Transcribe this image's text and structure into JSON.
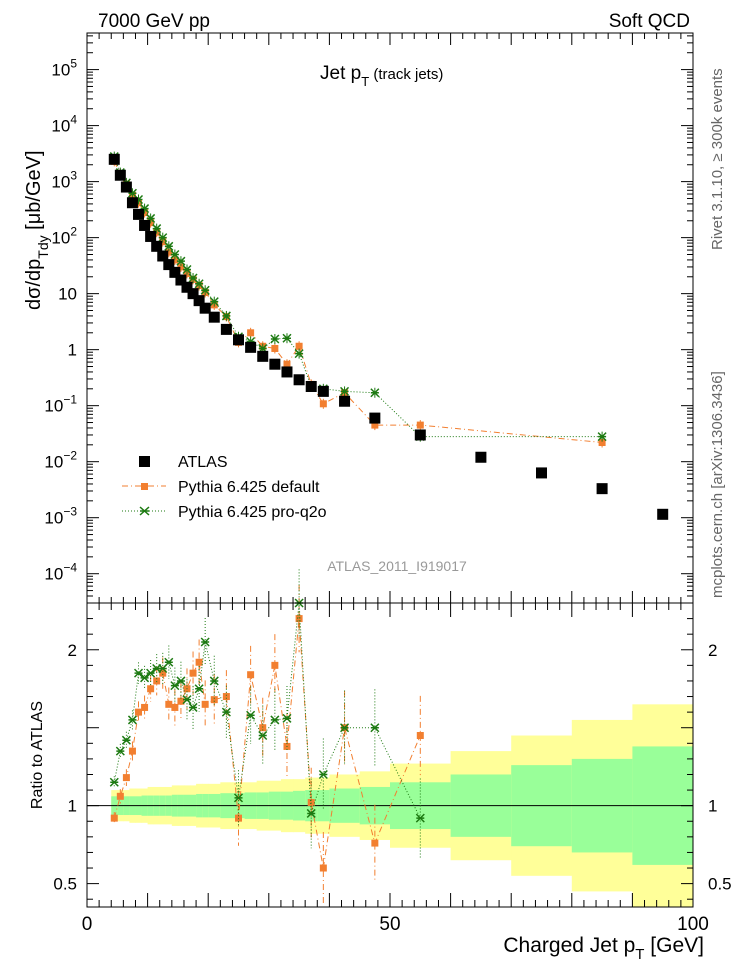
{
  "header": {
    "energy_label": "7000 GeV pp",
    "process_label": "Soft QCD",
    "plot_title": "Jet p",
    "plot_title_sub": "T",
    "plot_title_suffix": " (track jets)",
    "rivet_label": "Rivet 3.1.10, ≥ 300k events",
    "source_label": "mcplots.cern.ch [arXiv:1306.3436]",
    "watermark": "ATLAS_2011_I919017"
  },
  "legend": {
    "items": [
      {
        "label": "ATLAS",
        "color": "#000000",
        "marker": "square"
      },
      {
        "label": "Pythia 6.425 default",
        "color": "#f27f30",
        "marker": "square"
      },
      {
        "label": "Pythia 6.425 pro-q2o",
        "color": "#1d7a12",
        "marker": "star"
      }
    ]
  },
  "colors": {
    "data": "#000000",
    "pythia_default": "#f27f30",
    "pythia_proq2o": "#1d7a12",
    "band_outer": "#ffff99",
    "band_inner": "#99ff99"
  },
  "chart_data": [
    {
      "type": "scatter",
      "title": "Jet pT (track jets)",
      "ylabel_main": "dσ/dp",
      "ylabel_sub": "Tdy",
      "ylabel_unit": " [μb/GeV]",
      "yscale": "log",
      "ylim": [
        3e-05,
        450000
      ],
      "xlim": [
        0,
        100
      ],
      "yticks": [
        {
          "value": 100000,
          "label": "10",
          "exp": "5"
        },
        {
          "value": 10000,
          "label": "10",
          "exp": "4"
        },
        {
          "value": 1000,
          "label": "10",
          "exp": "3"
        },
        {
          "value": 100,
          "label": "10",
          "exp": "2"
        },
        {
          "value": 10,
          "label": "10",
          "exp": ""
        },
        {
          "value": 1,
          "label": "1",
          "exp": ""
        },
        {
          "value": 0.1,
          "label": "10",
          "exp": "−1"
        },
        {
          "value": 0.01,
          "label": "10",
          "exp": "−2"
        },
        {
          "value": 0.001,
          "label": "10",
          "exp": "−3"
        },
        {
          "value": 0.0001,
          "label": "10",
          "exp": "−4"
        }
      ],
      "series": [
        {
          "name": "ATLAS",
          "x": [
            4.5,
            5.5,
            6.5,
            7.5,
            8.5,
            9.5,
            10.5,
            11.5,
            12.5,
            13.5,
            14.5,
            15.5,
            16.5,
            17.5,
            18.5,
            19.5,
            21,
            23,
            25,
            27,
            29,
            31,
            33,
            35,
            37,
            39,
            42.5,
            47.5,
            55,
            65,
            75,
            85,
            95
          ],
          "y": [
            2500,
            1300,
            800,
            420,
            260,
            165,
            105,
            70,
            47,
            33,
            24,
            17.5,
            13,
            10,
            7.5,
            5.5,
            3.8,
            2.3,
            1.5,
            1.1,
            0.76,
            0.55,
            0.4,
            0.29,
            0.22,
            0.18,
            0.12,
            0.06,
            0.03,
            0.012,
            0.0063,
            0.0033,
            0.00115
          ]
        },
        {
          "name": "Pythia 6.425 default",
          "x": [
            4.5,
            5.5,
            6.5,
            7.5,
            8.5,
            9.5,
            10.5,
            11.5,
            12.5,
            13.5,
            14.5,
            15.5,
            16.5,
            17.5,
            18.5,
            19.5,
            21,
            23,
            25,
            27,
            29,
            31,
            33,
            35,
            37,
            39,
            42.5,
            47.5,
            55,
            85
          ],
          "y": [
            2300,
            1380,
            900,
            570,
            420,
            280,
            185,
            125,
            85,
            55,
            40,
            30,
            23,
            18,
            14,
            10.5,
            6.3,
            3.9,
            1.35,
            2.0,
            1.15,
            1.05,
            0.55,
            1.15,
            0.24,
            0.108,
            0.17,
            0.045,
            0.045,
            0.022
          ]
        },
        {
          "name": "Pythia 6.425 pro-q2o",
          "x": [
            4.5,
            5.5,
            6.5,
            7.5,
            8.5,
            9.5,
            10.5,
            11.5,
            12.5,
            13.5,
            14.5,
            15.5,
            16.5,
            17.5,
            18.5,
            19.5,
            21,
            23,
            25,
            27,
            29,
            31,
            33,
            35,
            37,
            39,
            42.5,
            47.5,
            55,
            85
          ],
          "y": [
            2800,
            1450,
            950,
            620,
            480,
            330,
            220,
            145,
            100,
            70,
            50,
            38,
            27,
            19,
            15,
            11.5,
            7.2,
            4.0,
            1.7,
            1.4,
            1.05,
            1.55,
            1.6,
            0.85,
            0.22,
            0.2,
            0.18,
            0.17,
            0.028,
            0.028
          ]
        }
      ]
    },
    {
      "type": "scatter",
      "ylabel": "Ratio to ATLAS",
      "xlabel_main": "Charged Jet p",
      "xlabel_sub": "T",
      "xlabel_unit": " [GeV]",
      "ylim": [
        0.35,
        2.3
      ],
      "xlim": [
        0,
        100
      ],
      "xticks": [
        {
          "value": 0,
          "label": "0"
        },
        {
          "value": 50,
          "label": "50"
        },
        {
          "value": 100,
          "label": "100"
        }
      ],
      "yticks": [
        {
          "value": 2,
          "label": "2"
        },
        {
          "value": 1,
          "label": "1"
        },
        {
          "value": 0.5,
          "label": "0.5"
        }
      ],
      "band_edges": [
        4,
        5,
        6,
        7,
        8,
        9,
        10,
        11,
        12,
        13,
        14,
        15,
        16,
        17,
        18,
        19,
        20,
        22,
        24,
        26,
        28,
        30,
        32,
        34,
        36,
        38,
        40,
        45,
        50,
        60,
        70,
        80,
        90,
        100
      ],
      "band_inner": [
        0.06,
        0.06,
        0.06,
        0.06,
        0.06,
        0.065,
        0.065,
        0.065,
        0.065,
        0.065,
        0.07,
        0.07,
        0.07,
        0.07,
        0.075,
        0.075,
        0.075,
        0.08,
        0.08,
        0.085,
        0.085,
        0.09,
        0.09,
        0.095,
        0.1,
        0.1,
        0.11,
        0.12,
        0.15,
        0.2,
        0.26,
        0.3,
        0.38
      ],
      "band_outer": [
        0.1,
        0.1,
        0.1,
        0.11,
        0.11,
        0.11,
        0.12,
        0.12,
        0.12,
        0.12,
        0.13,
        0.13,
        0.13,
        0.13,
        0.14,
        0.14,
        0.14,
        0.15,
        0.15,
        0.15,
        0.16,
        0.16,
        0.17,
        0.17,
        0.18,
        0.18,
        0.2,
        0.22,
        0.27,
        0.35,
        0.45,
        0.55,
        0.65
      ],
      "series": [
        {
          "name": "Pythia 6.425 default",
          "x": [
            4.5,
            5.5,
            6.5,
            7.5,
            8.5,
            9.5,
            10.5,
            11.5,
            12.5,
            13.5,
            14.5,
            15.5,
            16.5,
            17.5,
            18.5,
            19.5,
            21,
            23,
            25,
            27,
            29,
            31,
            33,
            35,
            37,
            39,
            42.5,
            47.5,
            55
          ],
          "y": [
            0.92,
            1.06,
            1.18,
            1.35,
            1.6,
            1.63,
            1.75,
            1.8,
            1.85,
            1.65,
            1.63,
            1.67,
            1.75,
            1.85,
            1.92,
            1.65,
            1.68,
            1.7,
            0.92,
            1.84,
            1.5,
            1.9,
            1.38,
            2.2,
            1.02,
            0.6,
            1.5,
            0.76,
            1.45
          ]
        },
        {
          "name": "Pythia 6.425 pro-q2o",
          "x": [
            4.5,
            5.5,
            6.5,
            7.5,
            8.5,
            9.5,
            10.5,
            11.5,
            12.5,
            13.5,
            14.5,
            15.5,
            16.5,
            17.5,
            18.5,
            19.5,
            21,
            23,
            25,
            27,
            29,
            31,
            33,
            35,
            37,
            39,
            42.5,
            47.5,
            55
          ],
          "y": [
            1.15,
            1.35,
            1.42,
            1.55,
            1.85,
            1.82,
            1.85,
            1.88,
            1.88,
            1.92,
            1.77,
            1.8,
            1.68,
            1.63,
            1.75,
            2.05,
            1.8,
            1.6,
            1.05,
            1.58,
            1.45,
            1.55,
            1.56,
            2.3,
            0.95,
            1.2,
            1.5,
            1.5,
            0.92
          ]
        }
      ]
    }
  ]
}
